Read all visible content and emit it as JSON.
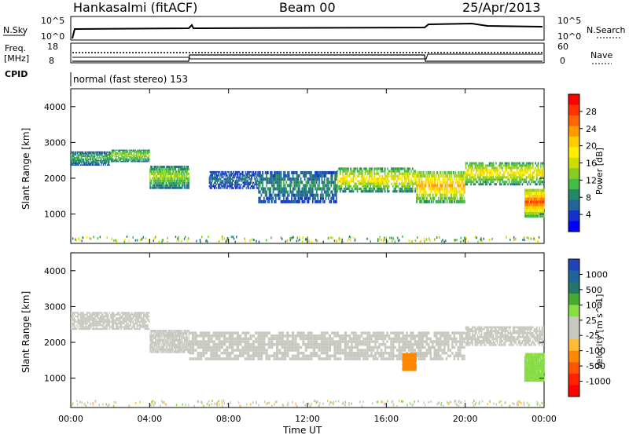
{
  "header": {
    "station": "Hankasalmi (fitACF)",
    "beam": "Beam 00",
    "date": "25/Apr/2013"
  },
  "top_panels": {
    "nsky_label": "N.Sky",
    "nsky_ticks": [
      "10^5",
      "10^0"
    ],
    "nsky_right_ticks": [
      "10^5",
      "10^0"
    ],
    "nsearch_label": "N.Search",
    "freq_label_1": "Freq.",
    "freq_label_2": "[MHz]",
    "freq_ticks": [
      "18",
      "8"
    ],
    "nave_ticks": [
      "60",
      "0"
    ],
    "nave_label": "Nave",
    "cpid_label": "CPID",
    "cpid_text": "normal (fast stereo) 153"
  },
  "axes": {
    "ylabel": "Slant Range [km]",
    "xlabel": "Time UT",
    "y_ticks": [
      "4000",
      "3000",
      "2000",
      "1000"
    ],
    "x_ticks": [
      "00:00",
      "04:00",
      "08:00",
      "12:00",
      "16:00",
      "20:00",
      "00:00"
    ]
  },
  "power_colorbar": {
    "label": "Power [dB]",
    "ticks": [
      "28",
      "24",
      "20",
      "16",
      "12",
      "8",
      "4"
    ],
    "colors": [
      "#ff0000",
      "#ff3300",
      "#ff6600",
      "#ff9900",
      "#ffcc00",
      "#ffee00",
      "#ccdd00",
      "#88cc22",
      "#44bb44",
      "#228866",
      "#226699",
      "#1133cc",
      "#0000ff"
    ]
  },
  "velocity_colorbar": {
    "label": "Velocity [m s^-1]",
    "ticks": [
      "1000",
      "500",
      "100",
      "25",
      "-25",
      "-100",
      "-500",
      "-1000"
    ],
    "colors": [
      "#2244bb",
      "#1e6699",
      "#227766",
      "#44aa33",
      "#88dd44",
      "#c8c8c0",
      "#c8c8c0",
      "#ffbb33",
      "#ff8800",
      "#ff5500",
      "#ff2200",
      "#ff0000"
    ]
  },
  "chart_data": [
    {
      "type": "heatmap",
      "title": "Power",
      "xlabel": "Time UT",
      "ylabel": "Slant Range [km]",
      "xlim": [
        0,
        24
      ],
      "ylim": [
        180,
        4500
      ],
      "colorbar": {
        "label": "Power [dB]",
        "range": [
          0,
          30
        ]
      },
      "bands": [
        {
          "t0": 0.0,
          "t1": 2.0,
          "r0": 2350,
          "r1": 2750,
          "level": 10
        },
        {
          "t0": 2.0,
          "t1": 4.0,
          "r0": 2450,
          "r1": 2800,
          "level": 14
        },
        {
          "t0": 4.0,
          "t1": 6.0,
          "r0": 1700,
          "r1": 2350,
          "level": 14
        },
        {
          "t0": 7.0,
          "t1": 9.5,
          "r0": 1700,
          "r1": 2200,
          "level": 6
        },
        {
          "t0": 9.5,
          "t1": 13.5,
          "r0": 1300,
          "r1": 2200,
          "level": 8
        },
        {
          "t0": 13.5,
          "t1": 17.5,
          "r0": 1600,
          "r1": 2300,
          "level": 18
        },
        {
          "t0": 17.5,
          "t1": 20.0,
          "r0": 1300,
          "r1": 2200,
          "level": 22
        },
        {
          "t0": 20.0,
          "t1": 24.0,
          "r0": 1800,
          "r1": 2450,
          "level": 18
        },
        {
          "t0": 23.0,
          "t1": 24.0,
          "r0": 900,
          "r1": 1700,
          "level": 26
        }
      ]
    },
    {
      "type": "heatmap",
      "title": "Velocity",
      "xlabel": "Time UT",
      "ylabel": "Slant Range [km]",
      "xlim": [
        0,
        24
      ],
      "ylim": [
        180,
        4500
      ],
      "colorbar": {
        "label": "Velocity [m s^-1]",
        "range": [
          -1000,
          1000
        ]
      },
      "bands": [
        {
          "t0": 0.0,
          "t1": 4.0,
          "r0": 2350,
          "r1": 2850,
          "value": 0
        },
        {
          "t0": 4.0,
          "t1": 6.0,
          "r0": 1700,
          "r1": 2350,
          "value": 0
        },
        {
          "t0": 6.0,
          "t1": 14.0,
          "r0": 1500,
          "r1": 2300,
          "value": 0
        },
        {
          "t0": 14.0,
          "t1": 20.0,
          "r0": 1500,
          "r1": 2300,
          "value": 0
        },
        {
          "t0": 20.0,
          "t1": 24.0,
          "r0": 1900,
          "r1": 2450,
          "value": 0
        },
        {
          "t0": 23.0,
          "t1": 24.0,
          "r0": 900,
          "r1": 1700,
          "value": 300
        },
        {
          "t0": 16.8,
          "t1": 17.5,
          "r0": 1200,
          "r1": 1700,
          "value": -500
        }
      ]
    }
  ]
}
